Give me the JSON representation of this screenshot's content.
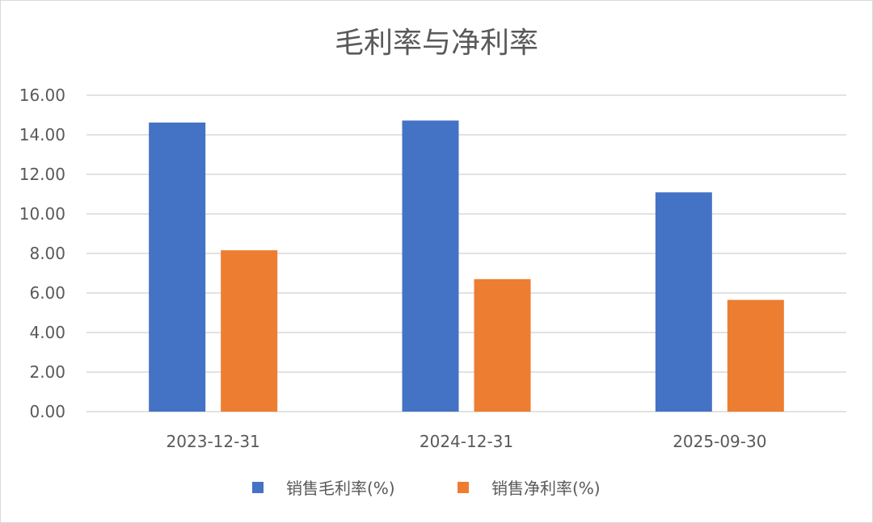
{
  "chart_data": {
    "type": "bar",
    "title": "毛利率与净利率",
    "categories": [
      "2023-12-31",
      "2024-12-31",
      "2025-09-30"
    ],
    "series": [
      {
        "name": "销售毛利率(%)",
        "values": [
          14.62,
          14.72,
          11.09
        ],
        "color": "#4472C4"
      },
      {
        "name": "销售净利率(%)",
        "values": [
          8.16,
          6.7,
          5.65
        ],
        "color": "#ED7D31"
      }
    ],
    "ylim": [
      0,
      16
    ],
    "yticks": [
      "0.00",
      "2.00",
      "4.00",
      "6.00",
      "8.00",
      "10.00",
      "12.00",
      "14.00",
      "16.00"
    ],
    "grid": true,
    "legend_position": "bottom",
    "gridline_color": "#d9d9d9"
  }
}
